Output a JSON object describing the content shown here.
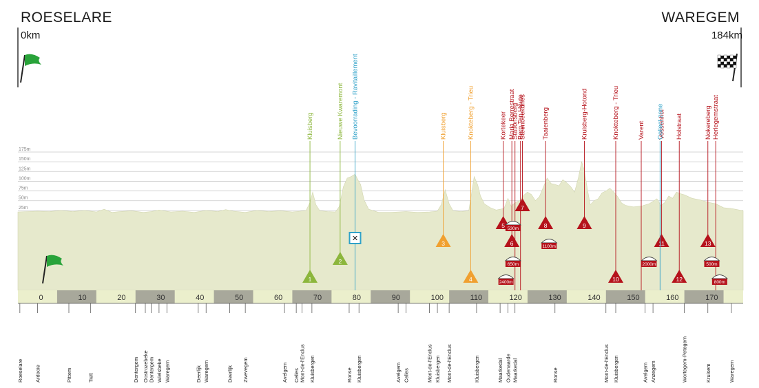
{
  "header": {
    "start_city": "ROESELARE",
    "start_km": "0km",
    "end_city": "WAREGEM",
    "end_km": "184km"
  },
  "colors": {
    "profile_fill": "#e6e9cc",
    "axis_band": "#ebefcc",
    "axis_band_alt": "#a8a89b",
    "climb": "#b5121b",
    "green_marker": "#8cb63c",
    "orange_marker": "#f0a030",
    "blue_marker": "#2ea1c8",
    "flag_green": "#29a33a"
  },
  "chart_data": {
    "type": "area",
    "title": "",
    "xlabel": "",
    "ylabel": "",
    "xlim": [
      -5,
      180
    ],
    "ylim": [
      0,
      175
    ],
    "ytick_labels": [
      "25m",
      "50m",
      "75m",
      "100m",
      "125m",
      "150m",
      "175m"
    ],
    "ytick_values": [
      25,
      50,
      75,
      100,
      125,
      150,
      175
    ],
    "xtick_labels": [
      "0",
      "10",
      "20",
      "30",
      "40",
      "50",
      "60",
      "70",
      "80",
      "90",
      "100",
      "110",
      "120",
      "130",
      "140",
      "150",
      "160",
      "170"
    ],
    "xtick_values": [
      0,
      10,
      20,
      30,
      40,
      50,
      60,
      70,
      80,
      90,
      100,
      110,
      120,
      130,
      140,
      150,
      160,
      170
    ],
    "profile": [
      [
        -5,
        21
      ],
      [
        0,
        23
      ],
      [
        3,
        22
      ],
      [
        6,
        25
      ],
      [
        9,
        22
      ],
      [
        12,
        25
      ],
      [
        15,
        21
      ],
      [
        17,
        28
      ],
      [
        19,
        20
      ],
      [
        21,
        22
      ],
      [
        24,
        24
      ],
      [
        27,
        20
      ],
      [
        29,
        22
      ],
      [
        31,
        26
      ],
      [
        34,
        21
      ],
      [
        37,
        23
      ],
      [
        40,
        20
      ],
      [
        43,
        25
      ],
      [
        46,
        22
      ],
      [
        48,
        27
      ],
      [
        50,
        23
      ],
      [
        53,
        20
      ],
      [
        56,
        25
      ],
      [
        59,
        22
      ],
      [
        62,
        24
      ],
      [
        65,
        21
      ],
      [
        67,
        23
      ],
      [
        68.5,
        25
      ],
      [
        69.5,
        45
      ],
      [
        70.2,
        72
      ],
      [
        71,
        40
      ],
      [
        72,
        24
      ],
      [
        74,
        22
      ],
      [
        76,
        21
      ],
      [
        77,
        35
      ],
      [
        78,
        85
      ],
      [
        79,
        108
      ],
      [
        80,
        112
      ],
      [
        81,
        118
      ],
      [
        81.8,
        102
      ],
      [
        82.4,
        92
      ],
      [
        83.3,
        52
      ],
      [
        84.5,
        28
      ],
      [
        87,
        20
      ],
      [
        90,
        20
      ],
      [
        94,
        22
      ],
      [
        97,
        20
      ],
      [
        100,
        21
      ],
      [
        102,
        23
      ],
      [
        103,
        40
      ],
      [
        104,
        78
      ],
      [
        105,
        42
      ],
      [
        106,
        24
      ],
      [
        108,
        22
      ],
      [
        110,
        24
      ],
      [
        110.7,
        68
      ],
      [
        111.4,
        112
      ],
      [
        112.3,
        90
      ],
      [
        113,
        62
      ],
      [
        114,
        42
      ],
      [
        115.5,
        32
      ],
      [
        117,
        26
      ],
      [
        119,
        30
      ],
      [
        120,
        56
      ],
      [
        120.8,
        36
      ],
      [
        122,
        46
      ],
      [
        123,
        50
      ],
      [
        124,
        64
      ],
      [
        125,
        72
      ],
      [
        126,
        66
      ],
      [
        127,
        50
      ],
      [
        128,
        60
      ],
      [
        129,
        84
      ],
      [
        130,
        108
      ],
      [
        131,
        94
      ],
      [
        132,
        92
      ],
      [
        133,
        88
      ],
      [
        134,
        104
      ],
      [
        135,
        96
      ],
      [
        136,
        86
      ],
      [
        137,
        72
      ],
      [
        138,
        110
      ],
      [
        138.8,
        150
      ],
      [
        139.5,
        128
      ],
      [
        140.3,
        78
      ],
      [
        141,
        40
      ],
      [
        142,
        50
      ],
      [
        143,
        55
      ],
      [
        144,
        70
      ],
      [
        145,
        75
      ],
      [
        146,
        82
      ],
      [
        147,
        72
      ],
      [
        148,
        60
      ],
      [
        149,
        44
      ],
      [
        150,
        38
      ],
      [
        152,
        34
      ],
      [
        154,
        36
      ],
      [
        156,
        42
      ],
      [
        157,
        48
      ],
      [
        158,
        55
      ],
      [
        159,
        38
      ],
      [
        160,
        45
      ],
      [
        161,
        62
      ],
      [
        162,
        56
      ],
      [
        163,
        72
      ],
      [
        164,
        68
      ],
      [
        165,
        65
      ],
      [
        167,
        56
      ],
      [
        169,
        52
      ],
      [
        171,
        46
      ],
      [
        173,
        42
      ],
      [
        175,
        32
      ],
      [
        177,
        30
      ],
      [
        180,
        24
      ]
    ]
  },
  "climbs": [
    {
      "km": 69.5,
      "name": "Kluisberg",
      "kind": "green",
      "num": "1",
      "level": 1
    },
    {
      "km": 77.2,
      "name": "Nieuwe Kwaremont",
      "kind": "green",
      "num": "2",
      "level": 2
    },
    {
      "km": 103.5,
      "name": "Kluisberg",
      "kind": "orange",
      "num": "3",
      "level": 3
    },
    {
      "km": 110.5,
      "name": "Knokteberg - Trieu",
      "kind": "orange",
      "num": "4",
      "level": 1
    },
    {
      "km": 118.8,
      "name": "Kortekeer",
      "kind": "red",
      "num": "5",
      "level": 4
    },
    {
      "km": 121.0,
      "name": "Maria Borrestraat",
      "kind": "red",
      "num": "6",
      "level": 3
    },
    {
      "km": 123.7,
      "name": "Steenbeekdries",
      "kind": "red",
      "num": "7",
      "level": 5
    },
    {
      "km": 129.6,
      "name": "Taaienberg",
      "kind": "red",
      "num": "8",
      "level": 4
    },
    {
      "km": 139.5,
      "name": "Kruisberg-Hotond",
      "kind": "red",
      "num": "9",
      "level": 4
    },
    {
      "km": 147.5,
      "name": "Knokteberg - Trieu",
      "kind": "red",
      "num": "10",
      "level": 1
    },
    {
      "km": 159.2,
      "name": "Vossenhol",
      "kind": "red",
      "num": "11",
      "level": 3
    },
    {
      "km": 163.7,
      "name": "Holstraat",
      "kind": "red",
      "num": "12",
      "level": 1
    },
    {
      "km": 171.0,
      "name": "Nokereberg",
      "kind": "red",
      "num": "13",
      "level": 3
    }
  ],
  "extra_markers": [
    {
      "km": 81.0,
      "name": "Bevoorrading - Ravitaillement",
      "kind": "blue"
    },
    {
      "km": 121.8,
      "name": "Stationsberg",
      "kind": "red"
    },
    {
      "km": 123.2,
      "name": "Berg Ten Houte",
      "kind": "red"
    },
    {
      "km": 154.0,
      "name": "Varent",
      "kind": "red"
    },
    {
      "km": 158.8,
      "name": "Collect zone",
      "kind": "blue"
    },
    {
      "km": 173.0,
      "name": "Herlegemstraat",
      "kind": "red"
    }
  ],
  "cobbles": [
    {
      "km": 121.3,
      "label": "530m",
      "level": 4
    },
    {
      "km": 130.5,
      "label": "1100m",
      "level": 3
    },
    {
      "km": 121.3,
      "label": "650m",
      "level": 2
    },
    {
      "km": 119.5,
      "label": "2400m",
      "level": 1
    },
    {
      "km": 156.0,
      "label": "2000m",
      "level": 2
    },
    {
      "km": 172.0,
      "label": "500m",
      "level": 2
    },
    {
      "km": 174.0,
      "label": "800m",
      "level": 1
    }
  ],
  "towns": [
    {
      "km": -4.5,
      "name": "Roeselare"
    },
    {
      "km": 0,
      "name": "Ardooie"
    },
    {
      "km": 8,
      "name": "Pittem"
    },
    {
      "km": 13.5,
      "name": "Tielt"
    },
    {
      "km": 25,
      "name": "Dentergem"
    },
    {
      "km": 27.5,
      "name": "Oostrozebeke"
    },
    {
      "km": 29,
      "name": "Dentergem"
    },
    {
      "km": 31,
      "name": "Wielsbeke"
    },
    {
      "km": 33,
      "name": "Waregem"
    },
    {
      "km": 41,
      "name": "Deerlijk"
    },
    {
      "km": 43,
      "name": "Waregem"
    },
    {
      "km": 49,
      "name": "Deerlijk"
    },
    {
      "km": 53,
      "name": "Zwevegem"
    },
    {
      "km": 63,
      "name": "Avelgem"
    },
    {
      "km": 66,
      "name": "Celles"
    },
    {
      "km": 67.5,
      "name": "Mont-de-l'Enclus"
    },
    {
      "km": 70,
      "name": "Kluisbergen"
    },
    {
      "km": 79.5,
      "name": "Ronse"
    },
    {
      "km": 82,
      "name": "Kluisbergen"
    },
    {
      "km": 92,
      "name": "Avelgem"
    },
    {
      "km": 94,
      "name": "Celles"
    },
    {
      "km": 100,
      "name": "Mont-de-l'Enclus"
    },
    {
      "km": 102,
      "name": "Kluisbergen"
    },
    {
      "km": 105,
      "name": "Mont-de-l'Enclus"
    },
    {
      "km": 112,
      "name": "Kluisbergen"
    },
    {
      "km": 118,
      "name": "Maarkedal"
    },
    {
      "km": 120,
      "name": "Oudenaarde"
    },
    {
      "km": 121.8,
      "name": "Maarkedal"
    },
    {
      "km": 132,
      "name": "Ronse"
    },
    {
      "km": 145,
      "name": "Mont-de-l'Enclus"
    },
    {
      "km": 147.5,
      "name": "Kluisbergen"
    },
    {
      "km": 155,
      "name": "Avelgem"
    },
    {
      "km": 157,
      "name": "Anzegem"
    },
    {
      "km": 165,
      "name": "Wortegem-Petegem"
    },
    {
      "km": 171,
      "name": "Kruisem"
    },
    {
      "km": 177,
      "name": "Waregem"
    }
  ]
}
